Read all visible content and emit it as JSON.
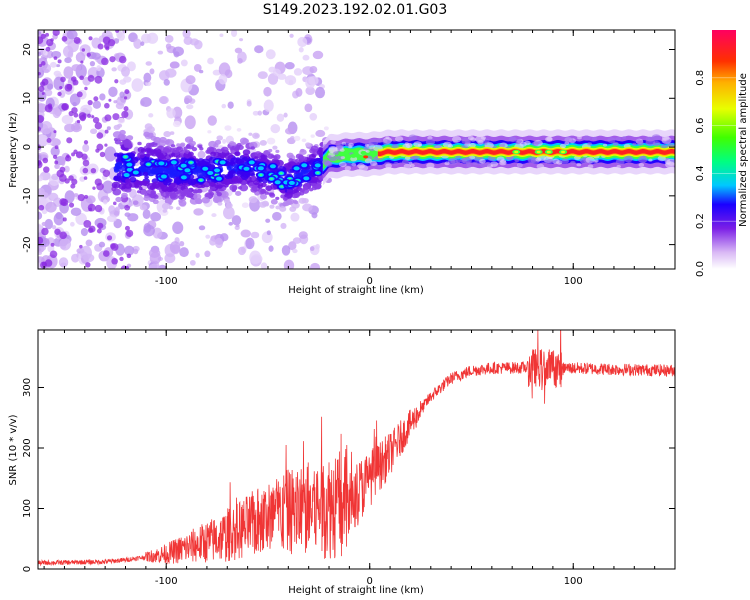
{
  "title": "S149.2023.192.02.01.G03",
  "chart_data": [
    {
      "type": "heatmap",
      "name": "spectrogram",
      "xlabel": "Height of straight line (km)",
      "ylabel": "Frequency (Hz)",
      "xlim": [
        -163,
        150
      ],
      "ylim": [
        -25,
        24
      ],
      "xticks": [
        -100,
        0,
        100
      ],
      "yticks": [
        20,
        10,
        0,
        -10,
        -20
      ],
      "colorbar": {
        "label": "Normalized spectral amplitude",
        "range": [
          0,
          1
        ],
        "ticks": [
          0.0,
          0.2,
          0.4,
          0.6,
          0.8
        ]
      },
      "ridge": [
        {
          "x": -120,
          "y": -4
        },
        {
          "x": -100,
          "y": -5
        },
        {
          "x": -80,
          "y": -5
        },
        {
          "x": -60,
          "y": -4
        },
        {
          "x": -40,
          "y": -7
        },
        {
          "x": -25,
          "y": -4
        },
        {
          "x": -20,
          "y": -2
        },
        {
          "x": -10,
          "y": -1.5
        },
        {
          "x": 0,
          "y": -1.5
        },
        {
          "x": 10,
          "y": -1
        },
        {
          "x": 50,
          "y": -1
        },
        {
          "x": 100,
          "y": -1
        },
        {
          "x": 150,
          "y": -1
        }
      ]
    },
    {
      "type": "line",
      "name": "snr",
      "xlabel": "Height of straight line (km)",
      "ylabel": "SNR (10 * v/v)",
      "xlim": [
        -163,
        150
      ],
      "ylim": [
        0,
        395
      ],
      "xticks": [
        -100,
        0,
        100
      ],
      "yticks": [
        0,
        100,
        200,
        300
      ],
      "color": "#f03535",
      "trend": [
        {
          "x": -163,
          "y": 10
        },
        {
          "x": -130,
          "y": 12
        },
        {
          "x": -120,
          "y": 15
        },
        {
          "x": -110,
          "y": 20
        },
        {
          "x": -100,
          "y": 25
        },
        {
          "x": -90,
          "y": 35
        },
        {
          "x": -80,
          "y": 45
        },
        {
          "x": -70,
          "y": 55
        },
        {
          "x": -60,
          "y": 70
        },
        {
          "x": -50,
          "y": 85
        },
        {
          "x": -40,
          "y": 95
        },
        {
          "x": -30,
          "y": 100
        },
        {
          "x": -20,
          "y": 105
        },
        {
          "x": -10,
          "y": 110
        },
        {
          "x": 0,
          "y": 150
        },
        {
          "x": 10,
          "y": 190
        },
        {
          "x": 20,
          "y": 240
        },
        {
          "x": 30,
          "y": 285
        },
        {
          "x": 40,
          "y": 315
        },
        {
          "x": 50,
          "y": 328
        },
        {
          "x": 60,
          "y": 332
        },
        {
          "x": 80,
          "y": 333
        },
        {
          "x": 100,
          "y": 332
        },
        {
          "x": 120,
          "y": 330
        },
        {
          "x": 150,
          "y": 328
        }
      ]
    }
  ]
}
